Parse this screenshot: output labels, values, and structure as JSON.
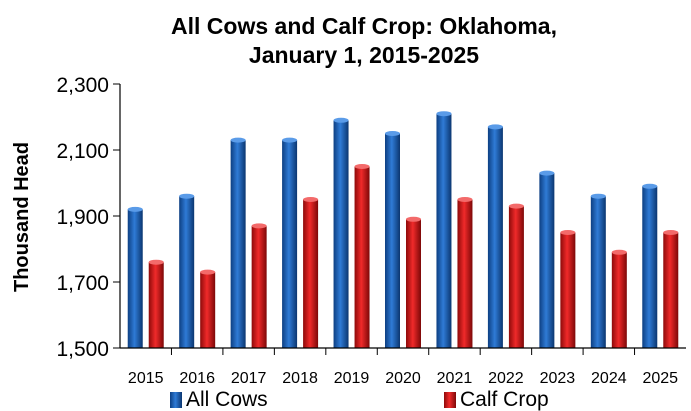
{
  "chart_data": {
    "type": "bar",
    "title_line1": "All Cows and Calf Crop: Oklahoma,",
    "title_line2": "January 1, 2015-2025",
    "xlabel": "",
    "ylabel": "Thousand Head",
    "ylim": [
      1500,
      2300
    ],
    "yticks": [
      1500,
      1700,
      1900,
      2100,
      2300
    ],
    "ytick_labels": [
      "1,500",
      "1,700",
      "1,900",
      "2,100",
      "2,300"
    ],
    "categories": [
      "2015",
      "2016",
      "2017",
      "2018",
      "2019",
      "2020",
      "2021",
      "2022",
      "2023",
      "2024",
      "2025"
    ],
    "series": [
      {
        "name": "All Cows",
        "color": "#1f5fae",
        "values": [
          1920,
          1960,
          2130,
          2130,
          2190,
          2150,
          2210,
          2170,
          2030,
          1960,
          1990
        ]
      },
      {
        "name": "Calf Crop",
        "color": "#d21414",
        "values": [
          1760,
          1730,
          1870,
          1950,
          2050,
          1890,
          1950,
          1930,
          1850,
          1790,
          1850
        ]
      }
    ],
    "grid": false,
    "legend": "bottom"
  }
}
